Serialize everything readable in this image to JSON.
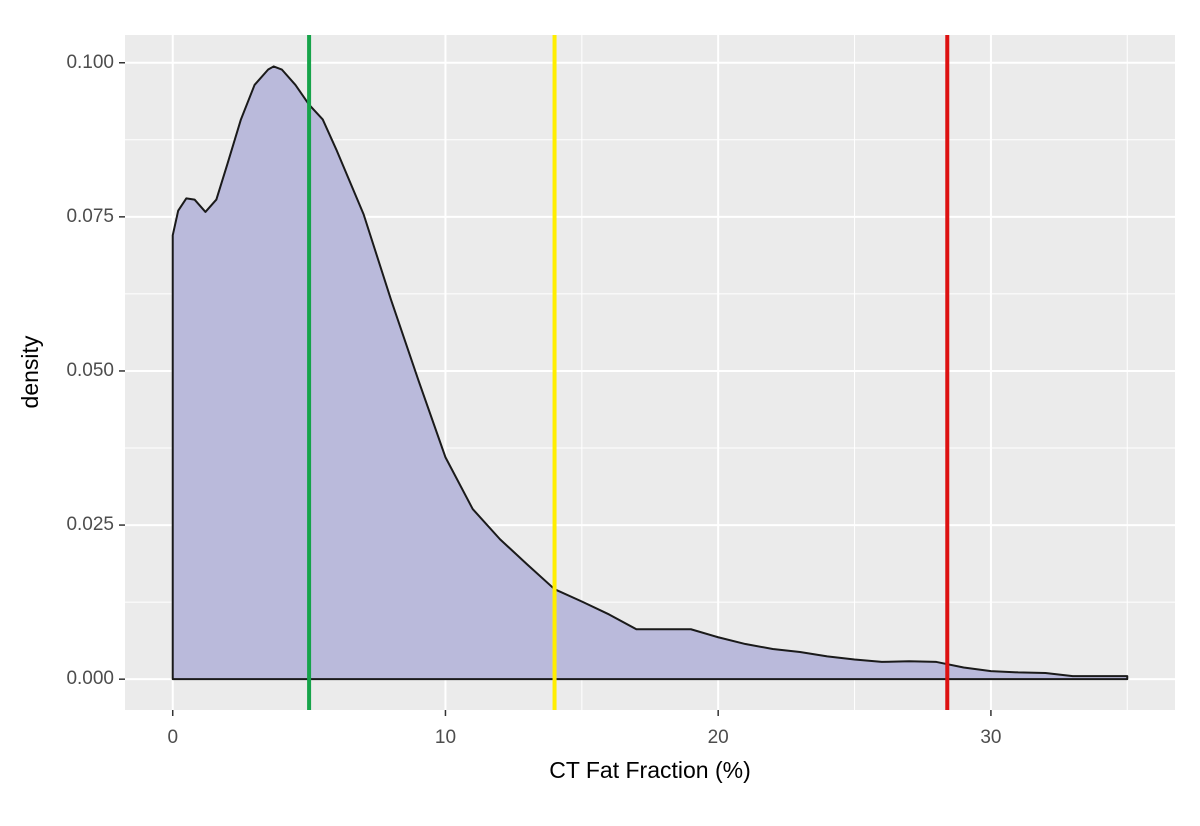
{
  "chart_data": {
    "type": "density",
    "x_label": "CT Fat Fraction (%)",
    "y_label": "density",
    "x": [
      0,
      0,
      0.2,
      0.5,
      0.8,
      1.2,
      1.6,
      2,
      2.5,
      3,
      3.5,
      3.7,
      4,
      4.5,
      5,
      5.5,
      6,
      7,
      8,
      9,
      10,
      11,
      12,
      13,
      14,
      15,
      16,
      17,
      18,
      19,
      20,
      21,
      22,
      23,
      24,
      25,
      26,
      27,
      28,
      29,
      30,
      31,
      32,
      33,
      34,
      35,
      35
    ],
    "values": [
      0,
      0.072,
      0.076,
      0.078,
      0.0778,
      0.0758,
      0.0778,
      0.0835,
      0.0908,
      0.0964,
      0.0989,
      0.0994,
      0.0989,
      0.0964,
      0.0932,
      0.0908,
      0.0859,
      0.0754,
      0.0616,
      0.0486,
      0.036,
      0.0276,
      0.0227,
      0.0186,
      0.0146,
      0.0126,
      0.0105,
      0.0081,
      0.0081,
      0.0081,
      0.0068,
      0.0057,
      0.0049,
      0.0044,
      0.0037,
      0.0032,
      0.0028,
      0.0029,
      0.0028,
      0.0019,
      0.0013,
      0.0011,
      0.001,
      0.0005,
      0.0005,
      0.0005,
      0
    ],
    "fill": "#babadb",
    "line_color": "#1a1a1a",
    "vlines": [
      {
        "x": 5,
        "color": "#16a34a"
      },
      {
        "x": 14,
        "color": "#ffee00"
      },
      {
        "x": 28.4,
        "color": "#dd1111"
      }
    ],
    "xlim": [
      -1.75,
      36.75
    ],
    "ylim": [
      -0.005,
      0.1045
    ],
    "xticks": [
      0,
      10,
      20,
      30
    ],
    "yticks": [
      {
        "value": 0,
        "label": "0.000"
      },
      {
        "value": 0.025,
        "label": "0.025"
      },
      {
        "value": 0.05,
        "label": "0.050"
      },
      {
        "value": 0.075,
        "label": "0.075"
      },
      {
        "value": 0.1,
        "label": "0.100"
      }
    ],
    "x_minor_ticks": [
      5,
      15,
      25,
      35
    ],
    "y_minor_ticks": [
      0.0125,
      0.0375,
      0.0625,
      0.0875
    ],
    "grid": true,
    "panel_color": "#ebebeb"
  }
}
